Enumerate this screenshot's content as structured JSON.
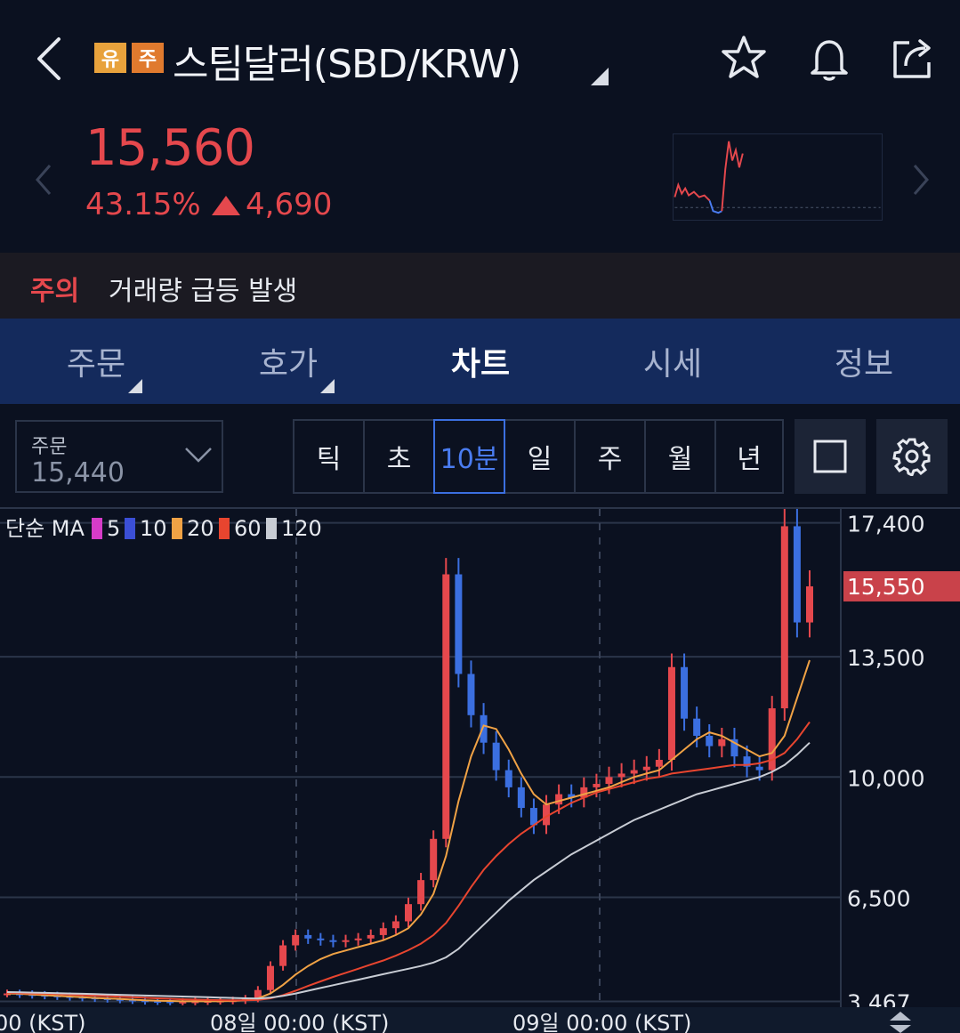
{
  "header": {
    "tag_warning": "유",
    "tag_caution": "주",
    "title": "스팀달러(SBD/KRW)",
    "icons": [
      "back-icon",
      "star-icon",
      "bell-icon",
      "share-icon"
    ]
  },
  "price": {
    "current": "15,560",
    "change_pct": "43.15%",
    "change_amt": "4,690",
    "color": "#e5484d"
  },
  "alert": {
    "label": "주의",
    "text": "거래량 급등 발생"
  },
  "tabs": [
    {
      "label": "주문"
    },
    {
      "label": "호가"
    },
    {
      "label": "차트"
    },
    {
      "label": "시세"
    },
    {
      "label": "정보"
    }
  ],
  "toolbar": {
    "order_label": "주문",
    "order_value": "15,440",
    "periods": [
      "틱",
      "초",
      "10분",
      "일",
      "주",
      "월",
      "년"
    ],
    "active_period": "10분"
  },
  "chart_data": {
    "type": "line",
    "legend": {
      "prefix": "단순 MA",
      "items": [
        {
          "label": "5",
          "color": "#d63cc8"
        },
        {
          "label": "10",
          "color": "#3b4fd6"
        },
        {
          "label": "20",
          "color": "#f0a245"
        },
        {
          "label": "60",
          "color": "#e8452f"
        },
        {
          "label": "120",
          "color": "#c8ccd4"
        }
      ]
    },
    "y_ticks": [
      "17,400",
      "13,500",
      "10,000",
      "6,500",
      "3,467"
    ],
    "y_tick_values": [
      17400,
      13500,
      10000,
      6500,
      3467
    ],
    "current_label": "15,550",
    "current_value": 15550,
    "x_labels": [
      "00 (KST)",
      "08일 00:00 (KST)",
      "09일 00:00 (KST)"
    ],
    "ylim": [
      3300,
      17700
    ],
    "price_series": [
      3700,
      3680,
      3660,
      3640,
      3620,
      3600,
      3580,
      3560,
      3540,
      3520,
      3500,
      3480,
      3470,
      3460,
      3460,
      3470,
      3480,
      3490,
      3500,
      3550,
      3800,
      4500,
      5100,
      5400,
      5300,
      5250,
      5200,
      5250,
      5300,
      5400,
      5600,
      5800,
      6300,
      7000,
      8200,
      15900,
      13000,
      11800,
      11000,
      10200,
      9700,
      9100,
      8600,
      9200,
      9500,
      9400,
      9700,
      9800,
      10000,
      10100,
      10200,
      10300,
      10500,
      13200,
      11700,
      11200,
      10900,
      11100,
      10600,
      10300,
      10200,
      12000,
      17300,
      14500,
      15550
    ],
    "ma_series": [
      {
        "name": "20",
        "values": [
          3700,
          3690,
          3670,
          3650,
          3630,
          3610,
          3590,
          3570,
          3555,
          3540,
          3520,
          3500,
          3490,
          3480,
          3470,
          3470,
          3470,
          3475,
          3480,
          3500,
          3560,
          3700,
          3950,
          4250,
          4500,
          4700,
          4850,
          4950,
          5050,
          5150,
          5250,
          5400,
          5600,
          6000,
          6600,
          7700,
          9300,
          10600,
          11500,
          11400,
          10800,
          10100,
          9500,
          9200,
          9300,
          9400,
          9500,
          9600,
          9700,
          9850,
          10000,
          10100,
          10200,
          10500,
          10800,
          11100,
          11300,
          11200,
          11000,
          10800,
          10600,
          10700,
          11200,
          12300,
          13400
        ]
      },
      {
        "name": "60",
        "values": [
          3720,
          3710,
          3700,
          3690,
          3680,
          3665,
          3650,
          3635,
          3620,
          3605,
          3590,
          3575,
          3560,
          3545,
          3530,
          3520,
          3510,
          3505,
          3500,
          3500,
          3510,
          3560,
          3650,
          3780,
          3920,
          4050,
          4180,
          4300,
          4420,
          4540,
          4660,
          4800,
          4960,
          5150,
          5400,
          5750,
          6250,
          6800,
          7300,
          7700,
          8050,
          8350,
          8600,
          8850,
          9050,
          9250,
          9400,
          9550,
          9650,
          9750,
          9850,
          9950,
          10000,
          10100,
          10150,
          10200,
          10250,
          10300,
          10350,
          10350,
          10400,
          10500,
          10700,
          11100,
          11600
        ]
      },
      {
        "name": "120",
        "values": [
          3740,
          3732,
          3724,
          3716,
          3708,
          3700,
          3690,
          3680,
          3670,
          3660,
          3650,
          3640,
          3630,
          3620,
          3610,
          3600,
          3590,
          3580,
          3570,
          3560,
          3555,
          3580,
          3630,
          3700,
          3780,
          3860,
          3940,
          4020,
          4100,
          4180,
          4260,
          4340,
          4420,
          4500,
          4600,
          4750,
          5000,
          5350,
          5700,
          6050,
          6400,
          6700,
          7000,
          7250,
          7500,
          7750,
          7950,
          8150,
          8350,
          8550,
          8750,
          8900,
          9050,
          9200,
          9350,
          9500,
          9600,
          9700,
          9800,
          9900,
          10000,
          10150,
          10350,
          10650,
          11000
        ]
      }
    ]
  }
}
